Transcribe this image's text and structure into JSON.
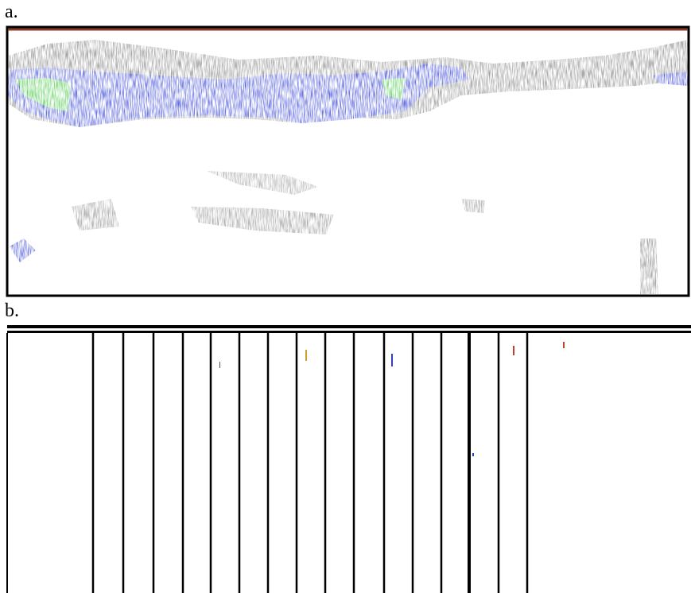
{
  "panels": [
    {
      "label": "a."
    },
    {
      "label": "b."
    }
  ]
}
